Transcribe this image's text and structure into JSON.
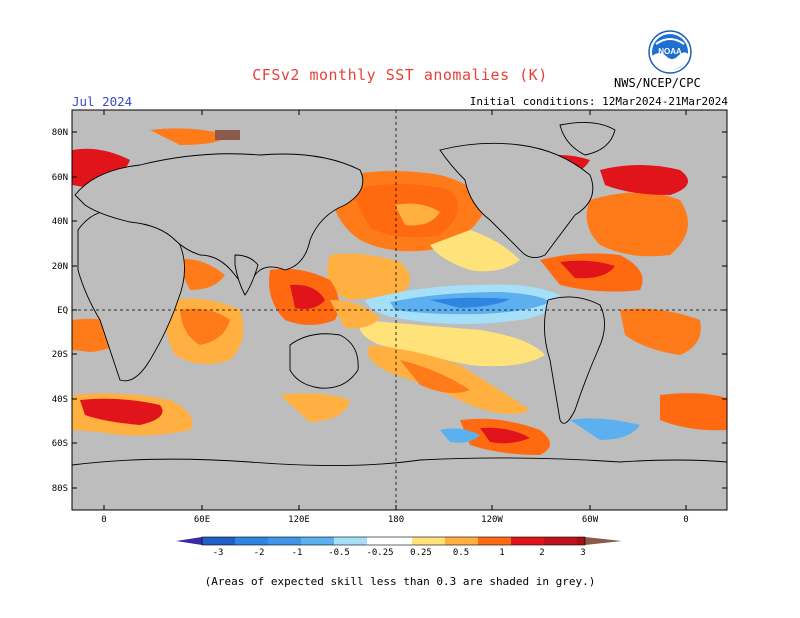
{
  "header": {
    "title": "CFSv2 monthly SST anomalies (K)",
    "valid_month": "Jul 2024",
    "initial_conditions": "Initial conditions: 12Mar2024-21Mar2024",
    "agency": "NWS/NCEP/CPC",
    "logo_text": "NOAA"
  },
  "map": {
    "lat_labels": [
      "80N",
      "60N",
      "40N",
      "20N",
      "EQ",
      "20S",
      "40S",
      "60S",
      "80S"
    ],
    "lon_labels": [
      "0",
      "60E",
      "120E",
      "180",
      "120W",
      "60W",
      "0"
    ],
    "background_color": "#bdbdbd",
    "projection": "cylindrical equidistant",
    "reference_lines": [
      "equator",
      "dateline"
    ]
  },
  "colorbar": {
    "tick_labels": [
      "-3",
      "-2",
      "-1",
      "-0.5",
      "-0.25",
      "0.25",
      "0.5",
      "1",
      "2",
      "3"
    ],
    "colors": [
      "#3a2aa8",
      "#1f5fc8",
      "#2f86e0",
      "#5cb0f0",
      "#a6e0f8",
      "#ffffff",
      "#ffe27a",
      "#ffb040",
      "#ff6a10",
      "#e0141a",
      "#a51010",
      "#8a5a4a"
    ]
  },
  "footnote": "(Areas of expected skill less than 0.3 are shaded in grey.)"
}
